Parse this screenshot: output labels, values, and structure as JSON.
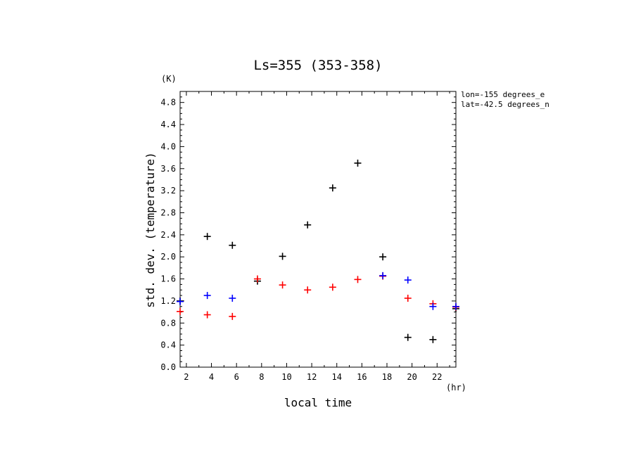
{
  "chart_data": {
    "type": "scatter",
    "title": "Ls=355 (353-358)",
    "xlabel": "local time",
    "ylabel": "std. dev. (temperature)",
    "x_unit": "(hr)",
    "y_unit": "(K)",
    "xlim": [
      1.5,
      23.5
    ],
    "ylim": [
      0.0,
      5.0
    ],
    "xticks": [
      2,
      4,
      6,
      8,
      10,
      12,
      14,
      16,
      18,
      20,
      22
    ],
    "yticks": [
      0.0,
      0.4,
      0.8,
      1.2,
      1.6,
      2.0,
      2.4,
      2.8,
      3.2,
      3.6,
      4.0,
      4.4,
      4.8
    ],
    "annotations": [
      "lon=-155 degrees_e",
      "lat=-42.5 degrees_n"
    ],
    "grid": false,
    "marker": "plus",
    "series": [
      {
        "color": "#000000",
        "x": [
          1.5,
          3.67,
          5.67,
          7.67,
          9.67,
          11.67,
          13.67,
          15.67,
          17.67,
          19.67,
          21.67,
          23.5
        ],
        "y": [
          1.2,
          2.37,
          2.21,
          1.56,
          2.01,
          2.58,
          3.25,
          3.7,
          2.0,
          0.54,
          0.5,
          1.06
        ]
      },
      {
        "color": "#ff0000",
        "x": [
          1.5,
          3.67,
          5.67,
          7.67,
          9.67,
          11.67,
          13.67,
          15.67,
          17.67,
          19.67,
          21.67,
          23.5
        ],
        "y": [
          1.01,
          0.95,
          0.92,
          1.6,
          1.49,
          1.4,
          1.45,
          1.59,
          1.65,
          1.25,
          1.15,
          1.09
        ]
      },
      {
        "color": "#0000ff",
        "x": [
          1.5,
          3.67,
          5.67,
          17.67,
          19.67,
          21.67,
          23.5
        ],
        "y": [
          1.19,
          1.3,
          1.25,
          1.66,
          1.58,
          1.1,
          1.1
        ]
      }
    ]
  }
}
